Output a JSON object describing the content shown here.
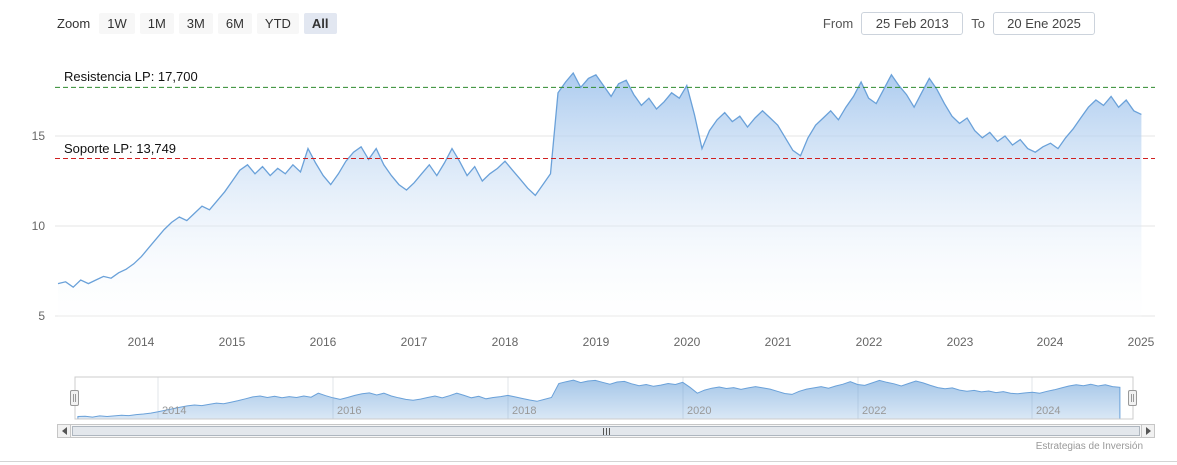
{
  "toolbar": {
    "zoom_label": "Zoom",
    "buttons": [
      {
        "label": "1W",
        "selected": false
      },
      {
        "label": "1M",
        "selected": false
      },
      {
        "label": "3M",
        "selected": false
      },
      {
        "label": "6M",
        "selected": false
      },
      {
        "label": "YTD",
        "selected": false
      },
      {
        "label": "All",
        "selected": true
      }
    ]
  },
  "range_selector": {
    "from_label": "From",
    "from_value": "25 Feb 2013",
    "to_label": "To",
    "to_value": "20 Ene 2025"
  },
  "annotations": [
    {
      "name": "resistance",
      "label": "Resistencia LP: 17,700",
      "value": 17.7,
      "color": "#2e8b2e",
      "style": "dashed"
    },
    {
      "name": "support",
      "label": "Soporte LP: 13,749",
      "value": 13.749,
      "color": "#d02020",
      "style": "dashed"
    }
  ],
  "credit": "Estrategias de Inversión",
  "chart_data": {
    "type": "area",
    "title": "",
    "xlabel": "",
    "ylabel": "",
    "grid": true,
    "legend": false,
    "xlim": [
      2013.05,
      2025.15
    ],
    "ylim": [
      4.5,
      19.5
    ],
    "yticks": [
      5,
      10,
      15
    ],
    "xticks": [
      2014,
      2015,
      2016,
      2017,
      2018,
      2019,
      2020,
      2021,
      2022,
      2023,
      2024,
      2025
    ],
    "colors": {
      "line": "#6aa1d9",
      "fill_top": "#9dc2ec",
      "fill_bottom": "#ffffff"
    },
    "navigator": {
      "xticks": [
        2014,
        2016,
        2018,
        2020,
        2022,
        2024
      ],
      "ylim": [
        6,
        19.5
      ]
    },
    "x": [
      2013.083,
      2013.167,
      2013.25,
      2013.333,
      2013.417,
      2013.5,
      2013.583,
      2013.667,
      2013.75,
      2013.833,
      2013.917,
      2014.0,
      2014.083,
      2014.167,
      2014.25,
      2014.333,
      2014.417,
      2014.5,
      2014.583,
      2014.667,
      2014.75,
      2014.833,
      2014.917,
      2015.0,
      2015.083,
      2015.167,
      2015.25,
      2015.333,
      2015.417,
      2015.5,
      2015.583,
      2015.667,
      2015.75,
      2015.833,
      2015.917,
      2016.0,
      2016.083,
      2016.167,
      2016.25,
      2016.333,
      2016.417,
      2016.5,
      2016.583,
      2016.667,
      2016.75,
      2016.833,
      2016.917,
      2017.0,
      2017.083,
      2017.167,
      2017.25,
      2017.333,
      2017.417,
      2017.5,
      2017.583,
      2017.667,
      2017.75,
      2017.833,
      2017.917,
      2018.0,
      2018.083,
      2018.167,
      2018.25,
      2018.333,
      2018.417,
      2018.5,
      2018.583,
      2018.667,
      2018.75,
      2018.833,
      2018.917,
      2019.0,
      2019.083,
      2019.167,
      2019.25,
      2019.333,
      2019.417,
      2019.5,
      2019.583,
      2019.667,
      2019.75,
      2019.833,
      2019.917,
      2020.0,
      2020.083,
      2020.167,
      2020.25,
      2020.333,
      2020.417,
      2020.5,
      2020.583,
      2020.667,
      2020.75,
      2020.833,
      2020.917,
      2021.0,
      2021.083,
      2021.167,
      2021.25,
      2021.333,
      2021.417,
      2021.5,
      2021.583,
      2021.667,
      2021.75,
      2021.833,
      2021.917,
      2022.0,
      2022.083,
      2022.167,
      2022.25,
      2022.333,
      2022.417,
      2022.5,
      2022.583,
      2022.667,
      2022.75,
      2022.833,
      2022.917,
      2023.0,
      2023.083,
      2023.167,
      2023.25,
      2023.333,
      2023.417,
      2023.5,
      2023.583,
      2023.667,
      2023.75,
      2023.833,
      2023.917,
      2024.0,
      2024.083,
      2024.167,
      2024.25,
      2024.333,
      2024.417,
      2024.5,
      2024.583,
      2024.667,
      2024.75,
      2024.833,
      2024.917,
      2025.0
    ],
    "values": [
      6.8,
      6.9,
      6.6,
      7.0,
      6.8,
      7.0,
      7.2,
      7.1,
      7.4,
      7.6,
      7.9,
      8.3,
      8.8,
      9.3,
      9.8,
      10.2,
      10.5,
      10.3,
      10.7,
      11.1,
      10.9,
      11.4,
      11.9,
      12.5,
      13.1,
      13.4,
      12.9,
      13.3,
      12.8,
      13.2,
      12.9,
      13.4,
      13.0,
      14.3,
      13.5,
      12.8,
      12.3,
      12.9,
      13.6,
      14.1,
      14.4,
      13.7,
      14.3,
      13.4,
      12.8,
      12.3,
      12.0,
      12.4,
      12.9,
      13.4,
      12.8,
      13.5,
      14.3,
      13.6,
      12.8,
      13.3,
      12.5,
      12.9,
      13.2,
      13.6,
      13.1,
      12.6,
      12.1,
      11.7,
      12.3,
      12.9,
      17.4,
      18.0,
      18.5,
      17.7,
      18.2,
      18.4,
      17.8,
      17.2,
      17.9,
      18.1,
      17.3,
      16.7,
      17.1,
      16.5,
      16.9,
      17.4,
      17.1,
      17.8,
      16.2,
      14.3,
      15.3,
      15.9,
      16.3,
      15.8,
      16.1,
      15.5,
      16.0,
      16.4,
      16.0,
      15.6,
      14.9,
      14.2,
      13.9,
      14.9,
      15.6,
      16.0,
      16.4,
      15.9,
      16.6,
      17.2,
      18.0,
      17.1,
      16.8,
      17.6,
      18.4,
      17.8,
      17.3,
      16.6,
      17.4,
      18.2,
      17.6,
      16.8,
      16.1,
      15.7,
      16.0,
      15.3,
      14.9,
      15.2,
      14.7,
      15.0,
      14.5,
      14.8,
      14.3,
      14.1,
      14.4,
      14.6,
      14.3,
      14.9,
      15.4,
      16.0,
      16.6,
      17.0,
      16.7,
      17.2,
      16.6,
      17.0,
      16.4,
      16.2
    ]
  }
}
